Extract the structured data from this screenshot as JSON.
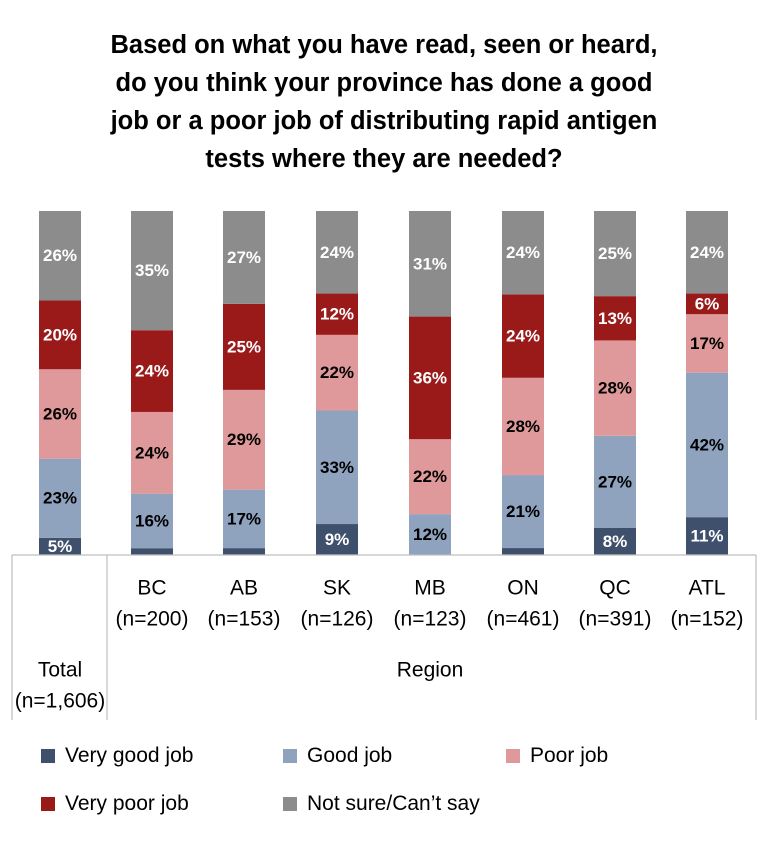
{
  "title_lines": [
    "Based on what you have read, seen or heard,",
    "do you think your province has done a good",
    "job or a poor job of distributing rapid antigen",
    "tests where they are needed?"
  ],
  "colors": {
    "very_good": "#3f506d",
    "good": "#8fa3bf",
    "poor": "#e0999a",
    "very_poor": "#9a1a1a",
    "not_sure": "#8c8c8c"
  },
  "chart_data": {
    "type": "bar",
    "stacked": true,
    "percent_scale": true,
    "ylim": [
      0,
      100
    ],
    "categories": [
      {
        "name": "Total",
        "n": "(n=1,606)",
        "group": "Total"
      },
      {
        "name": "BC",
        "n": "(n=200)",
        "group": "Region"
      },
      {
        "name": "AB",
        "n": "(n=153)",
        "group": "Region"
      },
      {
        "name": "SK",
        "n": "(n=126)",
        "group": "Region"
      },
      {
        "name": "MB",
        "n": "(n=123)",
        "group": "Region"
      },
      {
        "name": "ON",
        "n": "(n=461)",
        "group": "Region"
      },
      {
        "name": "QC",
        "n": "(n=391)",
        "group": "Region"
      },
      {
        "name": "ATL",
        "n": "(n=152)",
        "group": "Region"
      }
    ],
    "group_label": "Region",
    "series": [
      {
        "name": "Very good job",
        "key": "very_good",
        "values": [
          5,
          2,
          2,
          9,
          0,
          2,
          8,
          11
        ],
        "labels": [
          "5%",
          "",
          "",
          "9%",
          "",
          "",
          "8%",
          "11%"
        ]
      },
      {
        "name": "Good job",
        "key": "good",
        "values": [
          23,
          16,
          17,
          33,
          12,
          21,
          27,
          42
        ],
        "labels": [
          "23%",
          "16%",
          "17%",
          "33%",
          "12%",
          "21%",
          "27%",
          "42%"
        ]
      },
      {
        "name": "Poor job",
        "key": "poor",
        "values": [
          26,
          24,
          29,
          22,
          22,
          28,
          28,
          17
        ],
        "labels": [
          "26%",
          "24%",
          "29%",
          "22%",
          "22%",
          "28%",
          "28%",
          "17%"
        ]
      },
      {
        "name": "Very poor job",
        "key": "very_poor",
        "values": [
          20,
          24,
          25,
          12,
          36,
          24,
          13,
          6
        ],
        "labels": [
          "20%",
          "24%",
          "25%",
          "12%",
          "36%",
          "24%",
          "13%",
          "6%"
        ]
      },
      {
        "name": "Not sure/Can’t say",
        "key": "not_sure",
        "values": [
          26,
          35,
          27,
          24,
          31,
          24,
          25,
          24
        ],
        "labels": [
          "26%",
          "35%",
          "27%",
          "24%",
          "31%",
          "24%",
          "25%",
          "24%"
        ]
      }
    ],
    "legend": [
      "Very good job",
      "Good job",
      "Poor job",
      "Very poor job",
      "Not sure/Can’t say"
    ]
  }
}
